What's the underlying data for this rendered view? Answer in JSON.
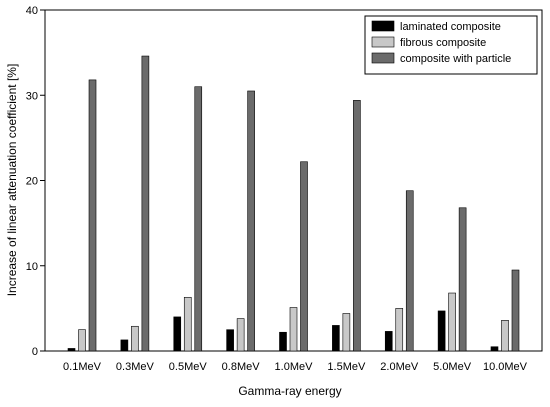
{
  "chart_data": {
    "type": "bar",
    "title": "",
    "xlabel": "Gamma-ray energy",
    "ylabel": "Increase of linear attenuation coefficient [%]",
    "ylim": [
      0,
      40
    ],
    "yticks": [
      0,
      10,
      20,
      30,
      40
    ],
    "grid": false,
    "legend_position": "top-right",
    "categories": [
      "0.1MeV",
      "0.3MeV",
      "0.5MeV",
      "0.8MeV",
      "1.0MeV",
      "1.5MeV",
      "2.0MeV",
      "5.0MeV",
      "10.0MeV"
    ],
    "series": [
      {
        "name": "laminated composite",
        "color": "#000000",
        "values": [
          0.3,
          1.3,
          4.0,
          2.5,
          2.2,
          3.0,
          2.3,
          4.7,
          0.5
        ]
      },
      {
        "name": "fibrous composite",
        "color": "#c8c8c8",
        "values": [
          2.5,
          2.9,
          6.3,
          3.8,
          5.1,
          4.4,
          5.0,
          6.8,
          3.6
        ]
      },
      {
        "name": "composite with particle",
        "color": "#6b6b6b",
        "values": [
          31.8,
          34.6,
          31.0,
          30.5,
          22.2,
          29.4,
          18.8,
          16.8,
          9.5
        ]
      }
    ]
  }
}
